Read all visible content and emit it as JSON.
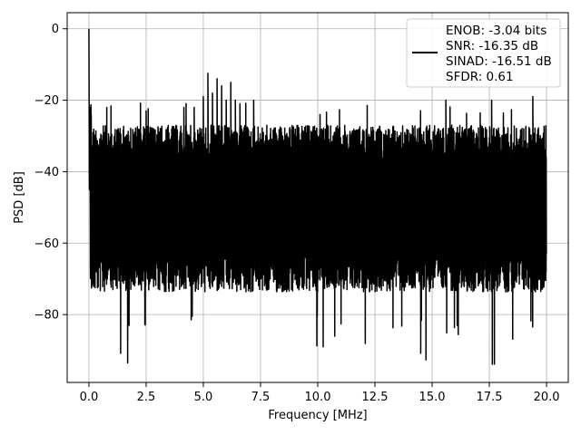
{
  "chart_data": {
    "type": "line",
    "title": "",
    "xlabel": "Frequency [MHz]",
    "ylabel": "PSD [dB]",
    "xlim": [
      -0.95,
      20.95
    ],
    "ylim": [
      -99,
      4.5
    ],
    "x_ticks": [
      0.0,
      2.5,
      5.0,
      7.5,
      10.0,
      12.5,
      15.0,
      17.5,
      20.0
    ],
    "x_tick_labels": [
      "0.0",
      "2.5",
      "5.0",
      "7.5",
      "10.0",
      "12.5",
      "15.0",
      "17.5",
      "20.0"
    ],
    "y_ticks": [
      0,
      -20,
      -40,
      -60,
      -80
    ],
    "y_tick_labels": [
      "0",
      "−20",
      "−40",
      "−60",
      "−80"
    ],
    "grid": true,
    "legend_position": "top-right",
    "series": [
      {
        "name": "ENOB: -3.04 bits\nSNR: -16.35 dB\nSINAD: -16.51 dB\nSFDR: 0.61",
        "color": "#000000",
        "x_range": [
          0.0,
          20.0
        ],
        "carrier_peak": {
          "x": 0.0,
          "y": 0.0
        },
        "noise_band": {
          "upper": -30,
          "lower": -70,
          "spikes_down_to": -94
        },
        "spurs": [
          {
            "x": 0.1,
            "y": -24
          },
          {
            "x": 2.5,
            "y": -23
          },
          {
            "x": 4.15,
            "y": -22
          },
          {
            "x": 4.6,
            "y": -22
          },
          {
            "x": 5.0,
            "y": -19
          },
          {
            "x": 5.2,
            "y": -12.5
          },
          {
            "x": 5.4,
            "y": -18
          },
          {
            "x": 5.6,
            "y": -14
          },
          {
            "x": 5.8,
            "y": -16
          },
          {
            "x": 6.0,
            "y": -20
          },
          {
            "x": 6.2,
            "y": -15
          },
          {
            "x": 6.4,
            "y": -20
          },
          {
            "x": 6.6,
            "y": -21
          },
          {
            "x": 7.2,
            "y": -20
          },
          {
            "x": 10.1,
            "y": -24
          },
          {
            "x": 15.6,
            "y": -20
          },
          {
            "x": 17.6,
            "y": -20
          },
          {
            "x": 19.4,
            "y": -19
          }
        ]
      }
    ]
  },
  "legend": {
    "lines": [
      "ENOB: -3.04 bits",
      "SNR: -16.35 dB",
      "SINAD: -16.51 dB",
      "SFDR: 0.61"
    ]
  }
}
